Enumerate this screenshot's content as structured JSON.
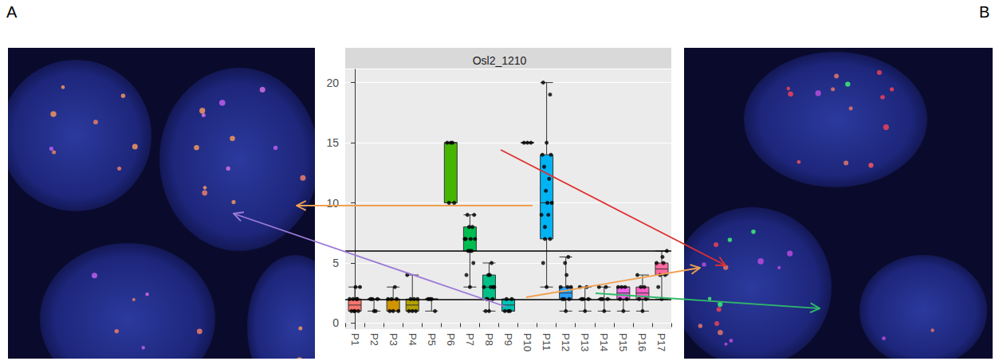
{
  "chart_data": {
    "type": "boxplot",
    "title": "Osl2_1210",
    "categories": [
      "P1",
      "P2",
      "P3",
      "P4",
      "P5",
      "P6",
      "P7",
      "P8",
      "P9",
      "P10",
      "P11",
      "P12",
      "P13",
      "P14",
      "P15",
      "P16",
      "P17"
    ],
    "boxes": [
      [
        1,
        1,
        1.5,
        2,
        3
      ],
      [
        1,
        2,
        2,
        2,
        2
      ],
      [
        1,
        1,
        2,
        2,
        3
      ],
      [
        1,
        1,
        1.5,
        2,
        4
      ],
      [
        1,
        2,
        2,
        2,
        2
      ],
      [
        10,
        10,
        15,
        15,
        15
      ],
      [
        3,
        6,
        7,
        8,
        9
      ],
      [
        1,
        2,
        3,
        4,
        5
      ],
      [
        1,
        1,
        1.5,
        2,
        2
      ],
      [
        15,
        15,
        15,
        15,
        15
      ],
      [
        3,
        7,
        10,
        14,
        20
      ],
      [
        1,
        2,
        2.5,
        3,
        5.5
      ],
      [
        1,
        2,
        2,
        2,
        3
      ],
      [
        1,
        2,
        2,
        2,
        3
      ],
      [
        1,
        2,
        2.5,
        3,
        3
      ],
      [
        1,
        2,
        2.5,
        3,
        4
      ],
      [
        2,
        4,
        4.5,
        5,
        6
      ]
    ],
    "points": [
      [
        1,
        1,
        1,
        2,
        2,
        2,
        3,
        3,
        1,
        2
      ],
      [
        1,
        2,
        2,
        2,
        1
      ],
      [
        1,
        1,
        2,
        2,
        3,
        2,
        1
      ],
      [
        1,
        1,
        1,
        2,
        2,
        4,
        2
      ],
      [
        2,
        2,
        1,
        2
      ],
      [
        15,
        15,
        10,
        10,
        15
      ],
      [
        3,
        4,
        5,
        6,
        6,
        7,
        7,
        7,
        8,
        8,
        9,
        9,
        7,
        6
      ],
      [
        1,
        1,
        2,
        2,
        3,
        3,
        3,
        4,
        4,
        5,
        2,
        3
      ],
      [
        1,
        1,
        2,
        2,
        1
      ],
      [
        15,
        15,
        15
      ],
      [
        3,
        5,
        7,
        8,
        9,
        9,
        10,
        10,
        11,
        12,
        13,
        14,
        14,
        15,
        20,
        19,
        7
      ],
      [
        1,
        2,
        2,
        2,
        3,
        3,
        3,
        4,
        5,
        5.5
      ],
      [
        1,
        2,
        2,
        2,
        3,
        3
      ],
      [
        1,
        2,
        2,
        2,
        3,
        3
      ],
      [
        1,
        2,
        2,
        3,
        3,
        3
      ],
      [
        1,
        2,
        2,
        3,
        3,
        4
      ],
      [
        2,
        3,
        4,
        4,
        5,
        5,
        6,
        5.5
      ]
    ],
    "colors": [
      "#F8766D",
      "#E7851E",
      "#D09400",
      "#B2A100",
      "#89AC00",
      "#45B500",
      "#00BC51",
      "#00C087",
      "#00C0B2",
      "#00BCD6",
      "#00B3F2",
      "#29A3FF",
      "#9C8DFF",
      "#D277FF",
      "#F166E8",
      "#FF61C7",
      "#FF689E"
    ],
    "reference_lines": [
      2,
      6
    ],
    "ylim": [
      -0.5,
      21.1
    ],
    "yticks": [
      0,
      5,
      10,
      15,
      20
    ],
    "grid": true
  },
  "panels": [
    "A",
    "B"
  ]
}
